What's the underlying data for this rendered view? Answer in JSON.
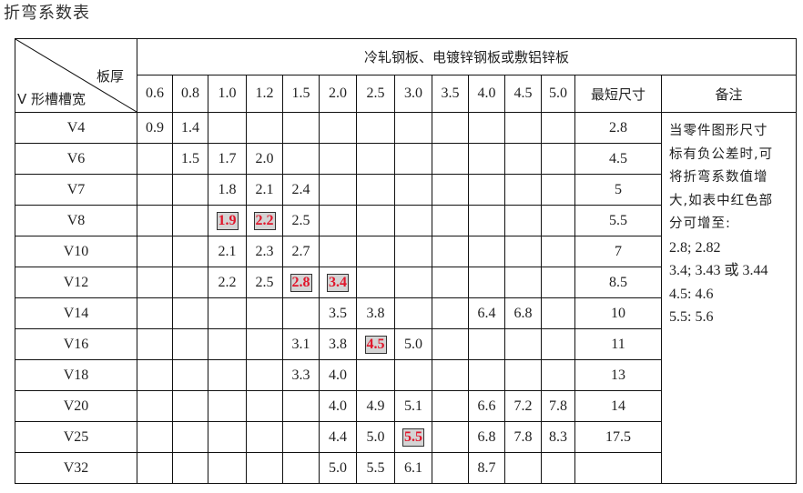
{
  "title": "折弯系数表",
  "table": {
    "corner_top": "板厚",
    "corner_bottom": "V 形槽槽宽",
    "group_header": "冷轧钢板、电镀锌钢板或敷铝锌板",
    "thicknesses": [
      "0.6",
      "0.8",
      "1.0",
      "1.2",
      "1.5",
      "2.0",
      "2.5",
      "3.0",
      "3.5",
      "4.0",
      "4.5",
      "5.0"
    ],
    "min_size_header": "最短尺寸",
    "notes_header": "备注",
    "highlight_color": "#e0162b",
    "highlight_bg": "#d4d4d4",
    "rows": [
      {
        "v": "V4",
        "cells": [
          "0.9",
          "1.4",
          "",
          "",
          "",
          "",
          "",
          "",
          "",
          "",
          "",
          ""
        ],
        "min": "2.8",
        "highlight": []
      },
      {
        "v": "V6",
        "cells": [
          "",
          "1.5",
          "1.7",
          "2.0",
          "",
          "",
          "",
          "",
          "",
          "",
          "",
          ""
        ],
        "min": "4.5",
        "highlight": []
      },
      {
        "v": "V7",
        "cells": [
          "",
          "",
          "1.8",
          "2.1",
          "2.4",
          "",
          "",
          "",
          "",
          "",
          "",
          ""
        ],
        "min": "5",
        "highlight": []
      },
      {
        "v": "V8",
        "cells": [
          "",
          "",
          "1.9",
          "2.2",
          "2.5",
          "",
          "",
          "",
          "",
          "",
          "",
          ""
        ],
        "min": "5.5",
        "highlight": [
          2,
          3
        ]
      },
      {
        "v": "V10",
        "cells": [
          "",
          "",
          "2.1",
          "2.3",
          "2.7",
          "",
          "",
          "",
          "",
          "",
          "",
          ""
        ],
        "min": "7",
        "highlight": []
      },
      {
        "v": "V12",
        "cells": [
          "",
          "",
          "2.2",
          "2.5",
          "2.8",
          "3.4",
          "",
          "",
          "",
          "",
          "",
          ""
        ],
        "min": "8.5",
        "highlight": [
          4,
          5
        ]
      },
      {
        "v": "V14",
        "cells": [
          "",
          "",
          "",
          "",
          "",
          "3.5",
          "3.8",
          "",
          "",
          "6.4",
          "6.8",
          ""
        ],
        "min": "10",
        "highlight": []
      },
      {
        "v": "V16",
        "cells": [
          "",
          "",
          "",
          "",
          "3.1",
          "3.8",
          "4.5",
          "5.0",
          "",
          "",
          "",
          ""
        ],
        "min": "11",
        "highlight": [
          6
        ]
      },
      {
        "v": "V18",
        "cells": [
          "",
          "",
          "",
          "",
          "3.3",
          "4.0",
          "",
          "",
          "",
          "",
          "",
          ""
        ],
        "min": "13",
        "highlight": []
      },
      {
        "v": "V20",
        "cells": [
          "",
          "",
          "",
          "",
          "",
          "4.0",
          "4.9",
          "5.1",
          "",
          "6.6",
          "7.2",
          "7.8"
        ],
        "min": "14",
        "highlight": []
      },
      {
        "v": "V25",
        "cells": [
          "",
          "",
          "",
          "",
          "",
          "4.4",
          "5.0",
          "5.5",
          "",
          "6.8",
          "7.8",
          "8.3"
        ],
        "min": "17.5",
        "highlight": [
          7
        ]
      },
      {
        "v": "V32",
        "cells": [
          "",
          "",
          "",
          "",
          "",
          "5.0",
          "5.5",
          "6.1",
          "",
          "8.7",
          "",
          ""
        ],
        "min": "",
        "highlight": []
      }
    ],
    "notes": {
      "text_lines": [
        "当零件图形尺寸",
        "标有负公差时,可",
        "将折弯系数值增",
        "大,如表中红色部",
        "分可增至:"
      ],
      "value_lines": [
        "2.8;  2.82",
        "3.4;  3.43 或 3.44",
        "4.5:  4.6",
        "5.5:  5.6"
      ]
    }
  }
}
